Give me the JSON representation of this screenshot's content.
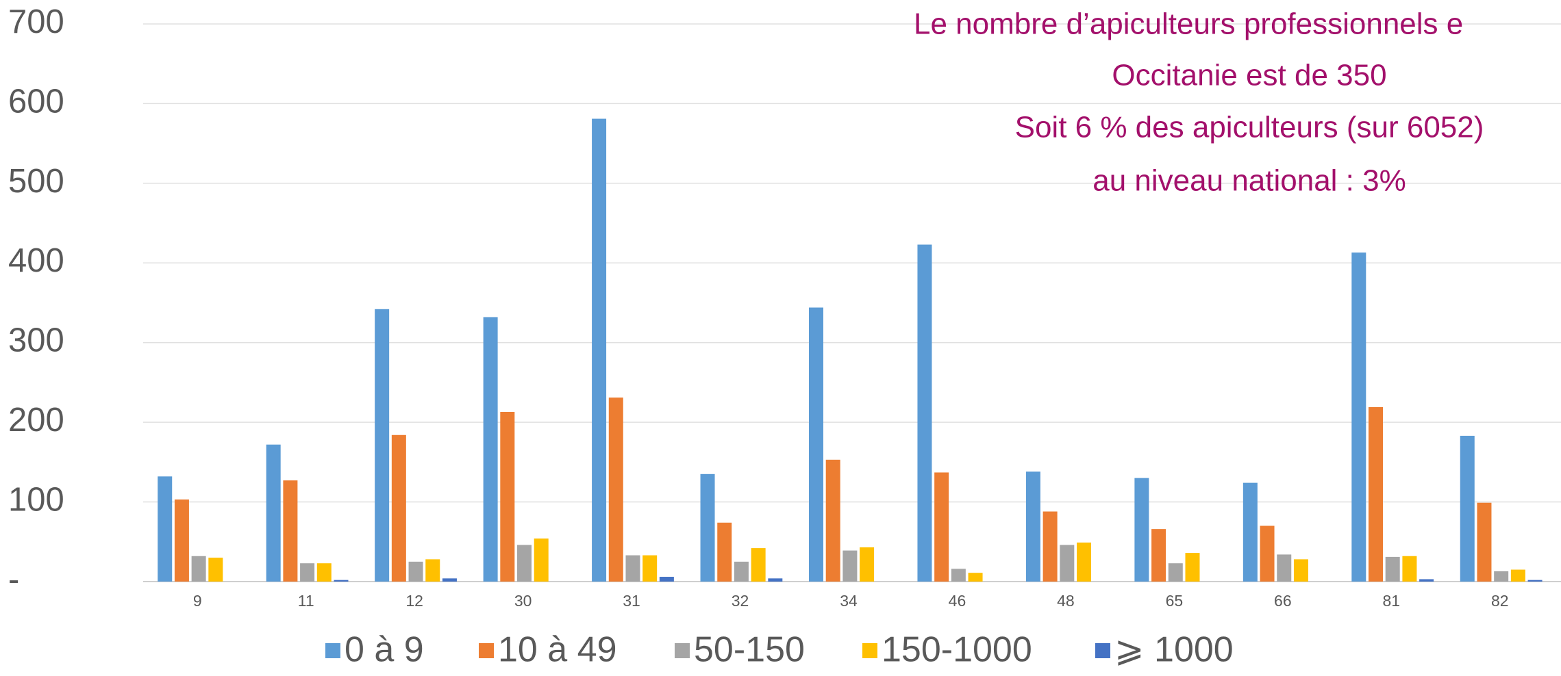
{
  "chart_data": {
    "type": "bar",
    "annotation": [
      "Le nombre d’apiculteurs professionnels e",
      "Occitanie est de 350",
      "Soit 6 % des apiculteurs (sur 6052)",
      "au niveau national : 3%"
    ],
    "categories": [
      "9",
      "11",
      "12",
      "30",
      "31",
      "32",
      "34",
      "46",
      "48",
      "65",
      "66",
      "81",
      "82"
    ],
    "series": [
      {
        "name": "0 à 9",
        "color": "#5b9bd5",
        "values": [
          132,
          172,
          342,
          332,
          581,
          135,
          344,
          423,
          138,
          130,
          124,
          413,
          183
        ]
      },
      {
        "name": "10 à 49",
        "color": "#ed7d31",
        "values": [
          103,
          127,
          184,
          213,
          231,
          74,
          153,
          137,
          88,
          66,
          70,
          219,
          99
        ]
      },
      {
        "name": "50-150",
        "color": "#a5a5a5",
        "values": [
          32,
          23,
          25,
          46,
          33,
          25,
          39,
          16,
          46,
          23,
          34,
          31,
          13
        ]
      },
      {
        "name": "150-1000",
        "color": "#ffc000",
        "values": [
          30,
          23,
          28,
          54,
          33,
          42,
          43,
          11,
          49,
          36,
          28,
          32,
          15
        ]
      },
      {
        "name": "⩾ 1000",
        "color": "#4472c4",
        "values": [
          0,
          2,
          4,
          0,
          6,
          4,
          0,
          0,
          0,
          0,
          0,
          3,
          2
        ]
      }
    ],
    "ylim": [
      0,
      700
    ],
    "yticks": [
      {
        "value": 0,
        "label": "-"
      },
      100,
      200,
      300,
      400,
      500,
      600,
      700
    ],
    "grid": true,
    "legend": "bottom"
  }
}
